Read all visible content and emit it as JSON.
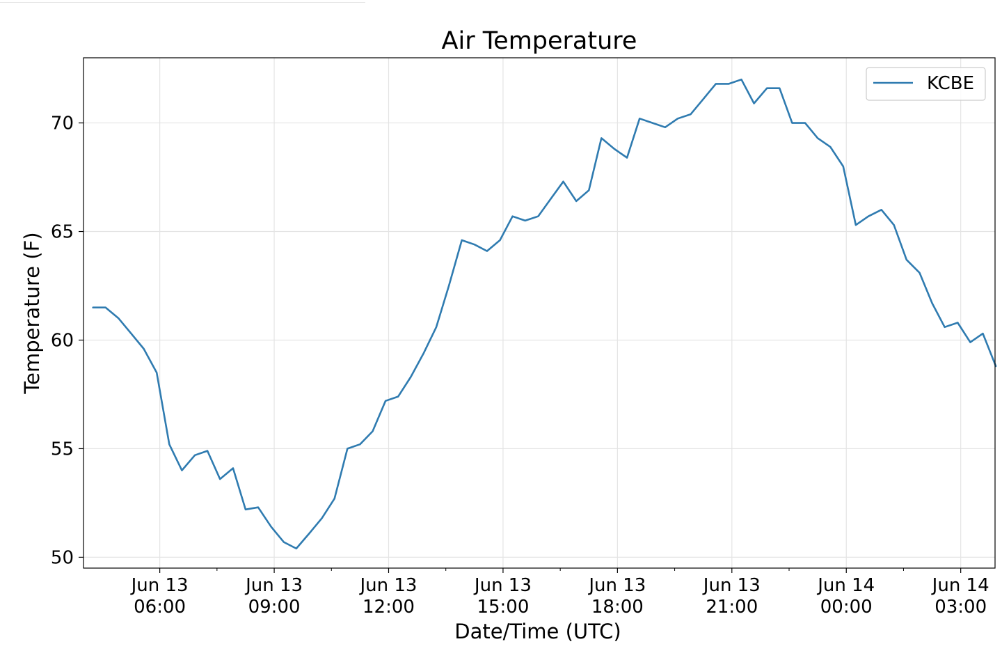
{
  "chart_data": {
    "type": "line",
    "title": "Air Temperature",
    "xlabel": "Date/Time (UTC)",
    "ylabel": "Temperature (F)",
    "ylim": [
      49.5,
      73.0
    ],
    "xlim_hours": [
      4.0,
      27.9
    ],
    "yticks": [
      50,
      55,
      60,
      65,
      70
    ],
    "xticks": [
      {
        "hour": 6,
        "line1": "Jun 13",
        "line2": "06:00"
      },
      {
        "hour": 9,
        "line1": "Jun 13",
        "line2": "09:00"
      },
      {
        "hour": 12,
        "line1": "Jun 13",
        "line2": "12:00"
      },
      {
        "hour": 15,
        "line1": "Jun 13",
        "line2": "15:00"
      },
      {
        "hour": 18,
        "line1": "Jun 13",
        "line2": "18:00"
      },
      {
        "hour": 21,
        "line1": "Jun 13",
        "line2": "21:00"
      },
      {
        "hour": 24,
        "line1": "Jun 14",
        "line2": "00:00"
      },
      {
        "hour": 27,
        "line1": "Jun 14",
        "line2": "03:00"
      }
    ],
    "minor_x_hours": [
      7.5,
      10.5,
      13.5,
      16.5,
      19.5,
      22.5,
      25.5
    ],
    "grid": true,
    "legend_position": "top-right",
    "series": [
      {
        "name": "KCBE",
        "color": "#2f7bb0",
        "x_hours": [
          4.25,
          4.58,
          4.92,
          5.25,
          5.58,
          5.92,
          6.25,
          6.58,
          6.92,
          7.25,
          7.58,
          7.92,
          8.25,
          8.58,
          8.92,
          9.25,
          9.58,
          9.92,
          10.25,
          10.58,
          10.92,
          11.25,
          11.58,
          11.92,
          12.25,
          12.58,
          12.92,
          13.25,
          13.58,
          13.92,
          14.25,
          14.58,
          14.92,
          15.25,
          15.58,
          15.92,
          16.25,
          16.58,
          16.92,
          17.25,
          17.58,
          17.92,
          18.25,
          18.58,
          18.92,
          19.25,
          19.58,
          19.92,
          20.25,
          20.58,
          20.92,
          21.25,
          21.58,
          21.92,
          22.25,
          22.58,
          22.92,
          23.25,
          23.58,
          23.92,
          24.25,
          24.58,
          24.92,
          25.25,
          25.58,
          25.92,
          26.25,
          26.58,
          26.92,
          27.25,
          27.58,
          27.92
        ],
        "values": [
          61.5,
          61.5,
          61.0,
          60.3,
          59.6,
          58.5,
          55.2,
          54.0,
          54.7,
          54.9,
          53.6,
          54.1,
          52.2,
          52.3,
          51.4,
          50.7,
          50.4,
          51.1,
          51.8,
          52.7,
          55.0,
          55.2,
          55.8,
          57.2,
          57.4,
          58.3,
          59.4,
          60.6,
          62.5,
          64.6,
          64.4,
          64.1,
          64.6,
          65.7,
          65.5,
          65.7,
          66.5,
          67.3,
          66.4,
          66.9,
          69.3,
          68.8,
          68.4,
          70.2,
          70.0,
          69.8,
          70.2,
          70.4,
          71.1,
          71.8,
          71.8,
          72.0,
          70.9,
          71.6,
          71.6,
          70.0,
          70.0,
          69.3,
          68.9,
          68.0,
          65.3,
          65.7,
          66.0,
          65.3,
          63.7,
          63.1,
          61.7,
          60.6,
          60.8,
          59.9,
          60.3,
          58.8
        ]
      }
    ]
  }
}
